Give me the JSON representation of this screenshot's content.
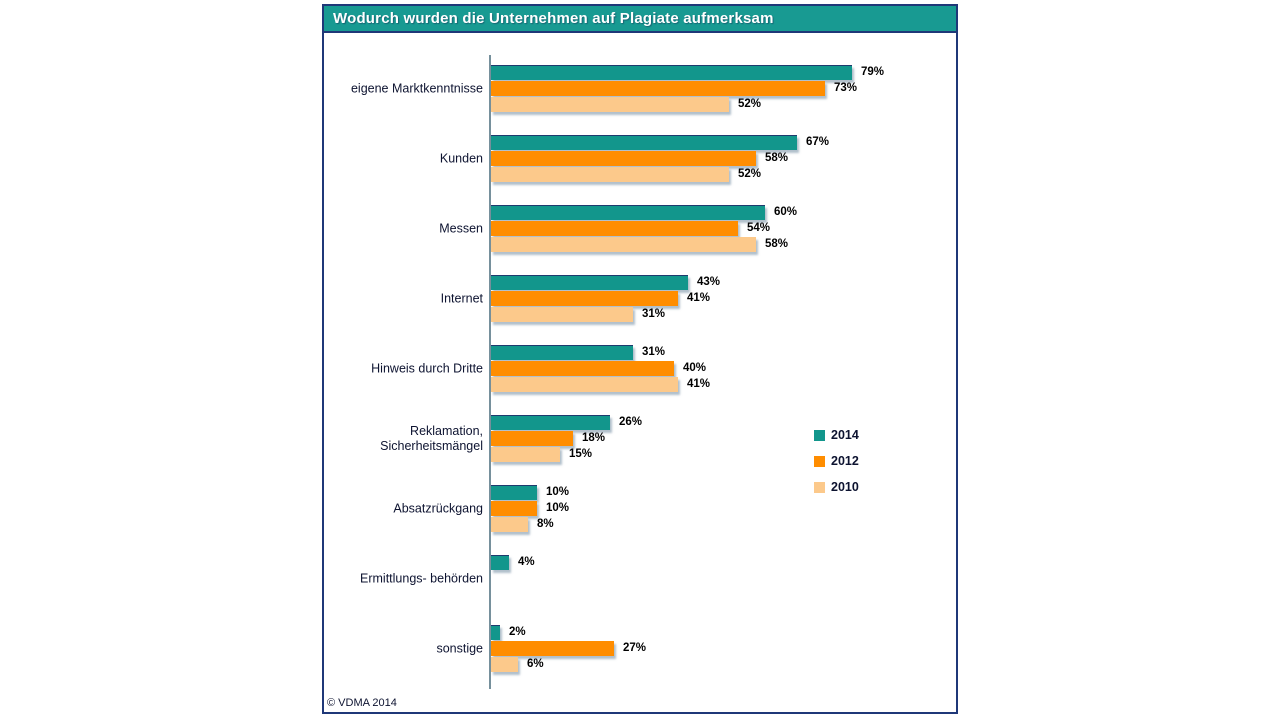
{
  "header": {
    "title": "Wodurch wurden die Unternehmen auf Plagiate aufmerksam"
  },
  "footer": {
    "source": "© VDMA 2014"
  },
  "legend": {
    "position": "right-middle",
    "items": [
      {
        "label": "2014",
        "color": "#12968c"
      },
      {
        "label": "2012",
        "color": "#ff8d00"
      },
      {
        "label": "2010",
        "color": "#fcc98b"
      }
    ]
  },
  "chart_data": {
    "type": "bar",
    "orientation": "horizontal",
    "title": "Wodurch wurden die Unternehmen auf Plagiate aufmerksam",
    "categories": [
      "eigene Marktkenntnisse",
      "Kunden",
      "Messen",
      "Internet",
      "Hinweis durch Dritte",
      "Reklamation, Sicherheitsmängel",
      "Absatzrückgang",
      "Ermittlungs- behörden",
      "sonstige"
    ],
    "series": [
      {
        "name": "2014",
        "color": "#12968c",
        "values": [
          79,
          67,
          60,
          43,
          31,
          26,
          10,
          4,
          2
        ]
      },
      {
        "name": "2012",
        "color": "#ff8d00",
        "values": [
          73,
          58,
          54,
          41,
          40,
          18,
          10,
          null,
          27
        ]
      },
      {
        "name": "2010",
        "color": "#fcc98b",
        "values": [
          52,
          52,
          58,
          31,
          41,
          15,
          8,
          null,
          6
        ]
      }
    ],
    "value_suffix": "%",
    "xlim": [
      0,
      100
    ],
    "grid": false,
    "legend_position": "right-middle",
    "source": "© VDMA 2014"
  }
}
